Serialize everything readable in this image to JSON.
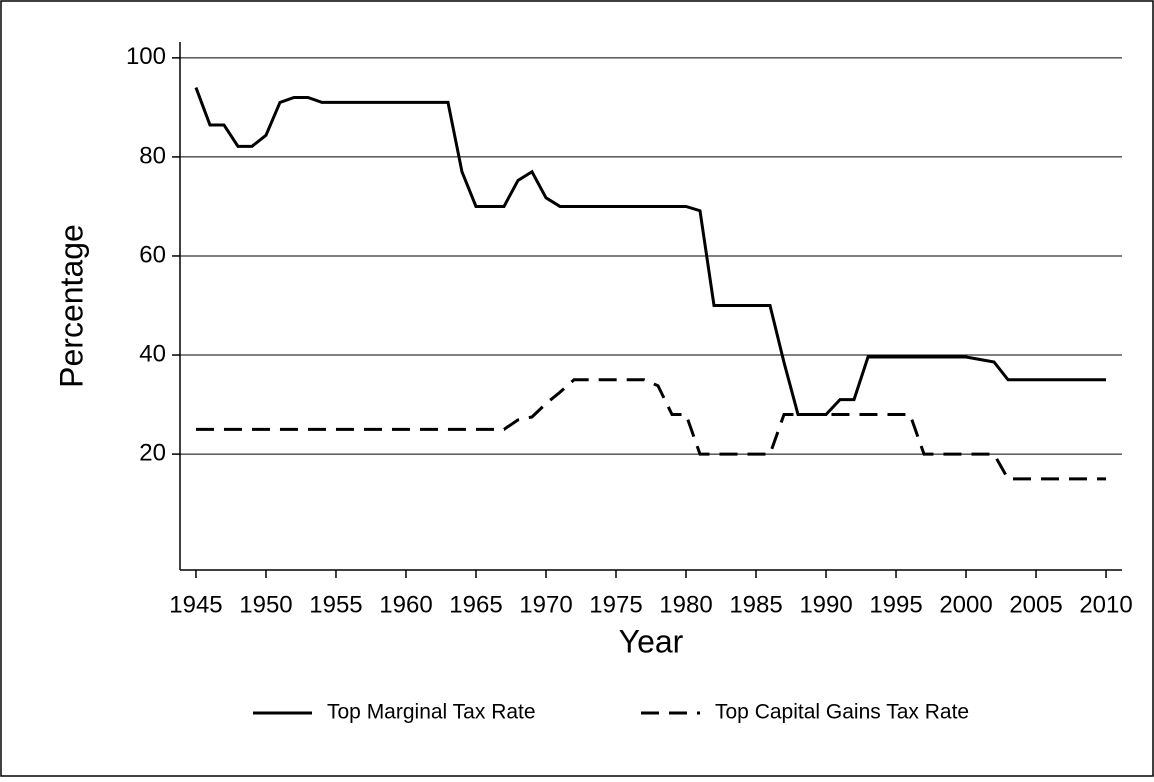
{
  "chart_data": {
    "type": "line",
    "x_label": "Year",
    "y_label": "Percentage",
    "x": [
      1945,
      1946,
      1947,
      1948,
      1949,
      1950,
      1951,
      1952,
      1953,
      1954,
      1955,
      1956,
      1957,
      1958,
      1959,
      1960,
      1961,
      1962,
      1963,
      1964,
      1965,
      1966,
      1967,
      1968,
      1969,
      1970,
      1971,
      1972,
      1973,
      1974,
      1975,
      1976,
      1977,
      1978,
      1979,
      1980,
      1981,
      1982,
      1983,
      1984,
      1985,
      1986,
      1987,
      1988,
      1989,
      1990,
      1991,
      1992,
      1993,
      1994,
      1995,
      1996,
      1997,
      1998,
      1999,
      2000,
      2001,
      2002,
      2003,
      2004,
      2005,
      2006,
      2007,
      2008,
      2009,
      2010
    ],
    "series": [
      {
        "name": "Top Marginal Tax Rate",
        "color": "#000000",
        "dash": false,
        "values": [
          94,
          86.45,
          86.45,
          82.13,
          82.13,
          84.36,
          91,
          92,
          92,
          91,
          91,
          91,
          91,
          91,
          91,
          91,
          91,
          91,
          91,
          77,
          70,
          70,
          70,
          75.25,
          77,
          71.75,
          70,
          70,
          70,
          70,
          70,
          70,
          70,
          70,
          70,
          70,
          69.13,
          50,
          50,
          50,
          50,
          50,
          38.5,
          28,
          28,
          28,
          31,
          31,
          39.6,
          39.6,
          39.6,
          39.6,
          39.6,
          39.6,
          39.6,
          39.6,
          39.1,
          38.6,
          35,
          35,
          35,
          35,
          35,
          35,
          35,
          35
        ]
      },
      {
        "name": "Top Capital Gains Tax Rate",
        "color": "#000000",
        "dash": true,
        "values": [
          25,
          25,
          25,
          25,
          25,
          25,
          25,
          25,
          25,
          25,
          25,
          25,
          25,
          25,
          25,
          25,
          25,
          25,
          25,
          25,
          25,
          25,
          25,
          26.9,
          27.5,
          30.2,
          32.5,
          35,
          35,
          35,
          35,
          35,
          35,
          33.8,
          28,
          28,
          20,
          20,
          20,
          20,
          20,
          20,
          28,
          28,
          28,
          28,
          28,
          28,
          28,
          28,
          28,
          28,
          20,
          20,
          20,
          20,
          20,
          20,
          15,
          15,
          15,
          15,
          15,
          15,
          15,
          15
        ]
      }
    ],
    "xlim": [
      1943.86,
      2011.14
    ],
    "xticks": [
      1945,
      1950,
      1955,
      1960,
      1965,
      1970,
      1975,
      1980,
      1985,
      1990,
      1995,
      2000,
      2005,
      2010
    ],
    "ylim": [
      -3.4,
      103.2
    ],
    "yticks": [
      20,
      40,
      60,
      80,
      100
    ],
    "grid": true,
    "legend": "bottom"
  }
}
